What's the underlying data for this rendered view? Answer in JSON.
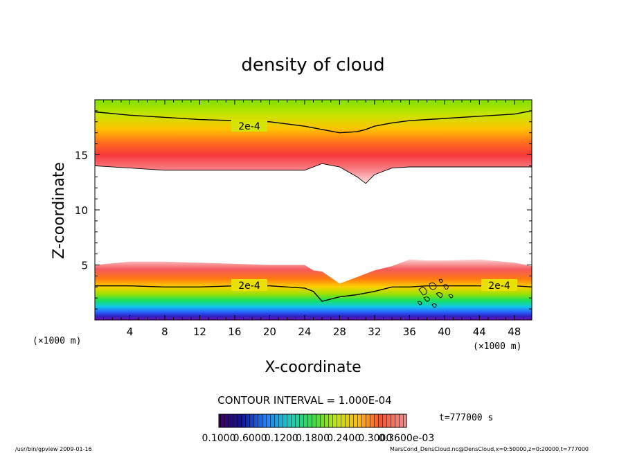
{
  "chart_data": {
    "type": "heatmap",
    "title": "density of cloud",
    "xlabel": "X-coordinate",
    "ylabel": "Z-coordinate",
    "x_unit": "(×1000 m)",
    "z_unit": "(×1000 m)",
    "xlim": [
      0,
      50
    ],
    "ylim": [
      0,
      20
    ],
    "x_ticks": [
      4,
      8,
      12,
      16,
      20,
      24,
      28,
      32,
      36,
      40,
      44,
      48
    ],
    "y_ticks": [
      5,
      10,
      15
    ],
    "contour_interval_text": "CONTOUR INTERVAL = 1.000E-04",
    "contour_label": "2e-4",
    "time_label": "t=777000 s",
    "colorbar_labels": [
      "0.1000",
      "0.6000",
      "0.1200",
      "0.1800",
      "0.2400",
      "0.3000",
      "0.3600e-03"
    ],
    "upper_cloud_layer": {
      "x": [
        0,
        4,
        8,
        12,
        16,
        20,
        24,
        26,
        28,
        30,
        31,
        32,
        34,
        36,
        40,
        44,
        48,
        50
      ],
      "bottom": [
        14.0,
        13.8,
        13.6,
        13.6,
        13.6,
        13.6,
        13.6,
        14.2,
        13.9,
        13.0,
        12.4,
        13.2,
        13.8,
        13.9,
        13.9,
        13.9,
        13.9,
        13.9
      ],
      "top_contour_2e-4": [
        18.9,
        18.6,
        18.4,
        18.2,
        18.1,
        18.0,
        17.6,
        17.3,
        17.0,
        17.1,
        17.3,
        17.6,
        17.9,
        18.1,
        18.3,
        18.5,
        18.7,
        19.0
      ]
    },
    "lower_cloud_layer": {
      "x": [
        0,
        4,
        8,
        12,
        16,
        20,
        24,
        25,
        26,
        28,
        30,
        32,
        34,
        36,
        38,
        40,
        44,
        48,
        50
      ],
      "top": [
        5.0,
        5.3,
        5.3,
        5.2,
        5.1,
        5.0,
        5.0,
        4.5,
        4.4,
        3.3,
        3.9,
        4.5,
        4.9,
        5.5,
        5.4,
        5.4,
        5.5,
        5.2,
        4.9
      ],
      "contour_2e-4": [
        3.1,
        3.1,
        3.0,
        3.0,
        3.1,
        3.1,
        2.9,
        2.6,
        1.7,
        2.1,
        2.3,
        2.6,
        3.0,
        3.0,
        3.1,
        3.1,
        3.1,
        3.1,
        3.0
      ]
    }
  },
  "footer": {
    "left": "/usr/bin/gpview   2009-01-16",
    "right": "MarsCond_DensCloud.nc@DensCloud,x=0:50000,z=0:20000,t=777000"
  }
}
